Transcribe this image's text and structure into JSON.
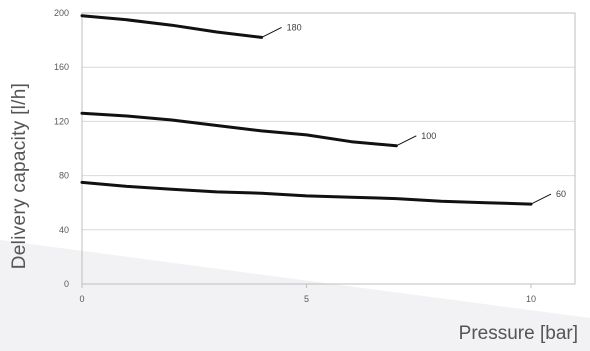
{
  "chart_data": {
    "type": "line",
    "xlabel": "Pressure [bar]",
    "ylabel": "Delivery capacity [l/h]",
    "xlim": [
      0,
      10
    ],
    "ylim": [
      0,
      200
    ],
    "x_ticks": [
      0,
      5,
      10
    ],
    "y_ticks": [
      0,
      40,
      80,
      120,
      160,
      200
    ],
    "grid": "horizontal",
    "colors": {
      "line": "#111111",
      "grid": "#d9d9d9",
      "tick_text": "#595959",
      "axis": "#bfbfbf"
    },
    "series": [
      {
        "name": "180",
        "x": [
          0,
          1,
          2,
          3,
          4
        ],
        "y": [
          198,
          195,
          191,
          186,
          182
        ]
      },
      {
        "name": "100",
        "x": [
          0,
          1,
          2,
          3,
          4,
          5,
          6,
          7
        ],
        "y": [
          126,
          124,
          121,
          117,
          113,
          110,
          105,
          102
        ]
      },
      {
        "name": "60",
        "x": [
          0,
          1,
          2,
          3,
          4,
          5,
          6,
          7,
          8,
          9,
          10
        ],
        "y": [
          75,
          72,
          70,
          68,
          67,
          65,
          64,
          63,
          61,
          60,
          59
        ]
      }
    ]
  }
}
